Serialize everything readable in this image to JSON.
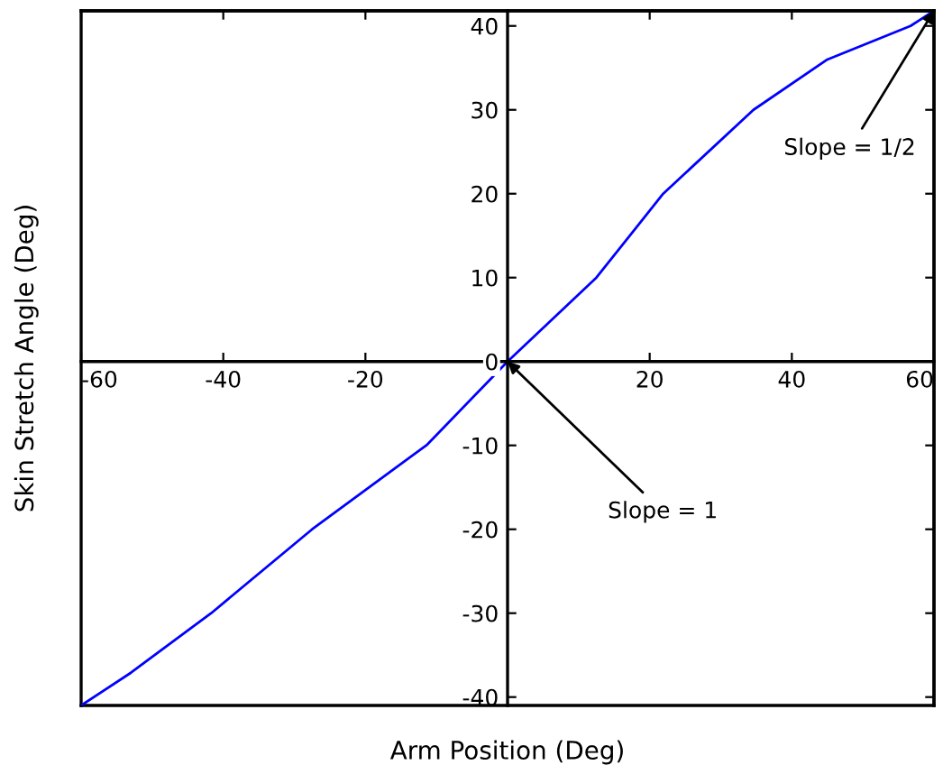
{
  "chart_data": {
    "type": "line",
    "xlabel": "Arm Position (Deg)",
    "ylabel": "Skin Stretch Angle (Deg)",
    "x": [
      -60,
      -53,
      -41.7,
      -27.5,
      -11.3,
      0,
      12.5,
      21.9,
      34.6,
      45,
      56.7,
      60
    ],
    "series": [
      {
        "color": "#0000ff",
        "values": [
          -41,
          -37.1,
          -30,
          -20,
          -9.9,
          0,
          10,
          20,
          30,
          36,
          40,
          41.8
        ]
      }
    ],
    "xlim": [
      -60,
      60
    ],
    "ylim": [
      -41,
      41.8
    ],
    "xticks": [
      -60,
      -40,
      -20,
      20,
      40,
      60
    ],
    "yticks": [
      -40,
      -30,
      -20,
      -10,
      0,
      10,
      20,
      30,
      40
    ],
    "grid": false,
    "legend": false,
    "annotations": [
      {
        "text": "Slope = 1",
        "x": 0,
        "y": 0
      },
      {
        "text": "Slope = 1/2",
        "x": 60,
        "y": 41.8
      }
    ]
  }
}
